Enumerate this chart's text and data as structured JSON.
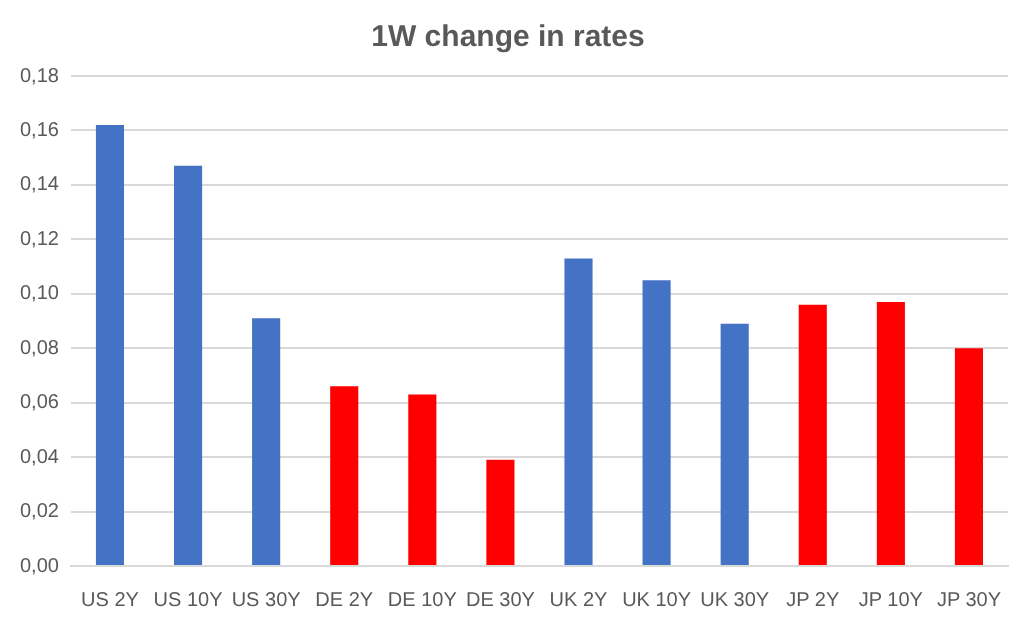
{
  "chart_data": {
    "type": "bar",
    "title": "1W change in rates",
    "categories": [
      "US 2Y",
      "US 10Y",
      "US 30Y",
      "DE 2Y",
      "DE 10Y",
      "DE 30Y",
      "UK 2Y",
      "UK 10Y",
      "UK 30Y",
      "JP 2Y",
      "JP 10Y",
      "JP 30Y"
    ],
    "values": [
      0.162,
      0.147,
      0.091,
      0.066,
      0.063,
      0.039,
      0.113,
      0.105,
      0.089,
      0.096,
      0.097,
      0.08
    ],
    "colors": [
      "#4472c4",
      "#4472c4",
      "#4472c4",
      "#ff0000",
      "#ff0000",
      "#ff0000",
      "#4472c4",
      "#4472c4",
      "#4472c4",
      "#ff0000",
      "#ff0000",
      "#ff0000"
    ],
    "ylim": [
      0,
      0.18
    ],
    "yticks": [
      {
        "value": 0,
        "label": "0,00"
      },
      {
        "value": 0.02,
        "label": "0,02"
      },
      {
        "value": 0.04,
        "label": "0,04"
      },
      {
        "value": 0.06,
        "label": "0,06"
      },
      {
        "value": 0.08,
        "label": "0,08"
      },
      {
        "value": 0.1,
        "label": "0,10"
      },
      {
        "value": 0.12,
        "label": "0,12"
      },
      {
        "value": 0.14,
        "label": "0,14"
      },
      {
        "value": 0.16,
        "label": "0,16"
      },
      {
        "value": 0.18,
        "label": "0,18"
      }
    ],
    "grid": "y"
  }
}
